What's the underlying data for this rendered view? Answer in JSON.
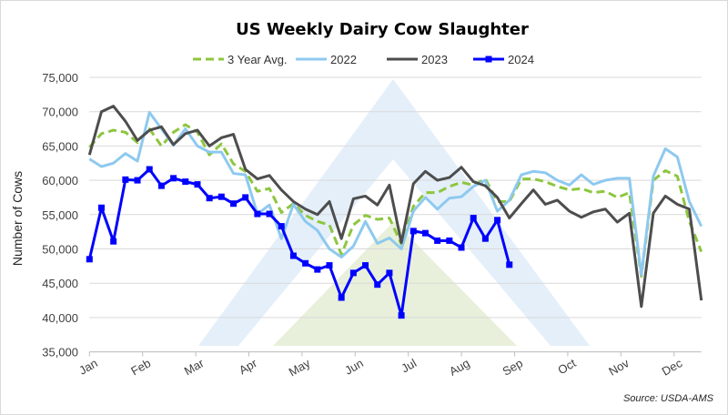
{
  "chart_data": {
    "type": "line",
    "title": "US Weekly Dairy Cow Slaughter",
    "xlabel": "",
    "ylabel": "Number of Cows",
    "ylim": [
      35000,
      75000
    ],
    "yticks": [
      35000,
      40000,
      45000,
      50000,
      55000,
      60000,
      65000,
      70000,
      75000
    ],
    "ytick_labels": [
      "35,000",
      "40,000",
      "45,000",
      "50,000",
      "55,000",
      "60,000",
      "65,000",
      "70,000",
      "75,000"
    ],
    "x_unit": "week of year",
    "xlim": [
      1,
      52
    ],
    "month_labels": [
      "Jan",
      "Feb",
      "Mar",
      "Apr",
      "May",
      "Jun",
      "Jul",
      "Aug",
      "Sep",
      "Oct",
      "Nov",
      "Dec"
    ],
    "grid": "horizontal",
    "legend_position": "top",
    "source": "Source: USDA-AMS",
    "series": [
      {
        "name": "3 Year Avg.",
        "color": "#8dc63f",
        "style": "dashed",
        "values": [
          64800,
          66800,
          67300,
          67000,
          65500,
          67500,
          65000,
          67000,
          68100,
          67000,
          63700,
          65300,
          62400,
          61300,
          58400,
          58800,
          55300,
          56600,
          54900,
          54000,
          53500,
          49200,
          53500,
          54900,
          54300,
          54500,
          50700,
          56200,
          58200,
          58200,
          59100,
          59700,
          59300,
          60200,
          56900,
          56900,
          60200,
          60200,
          59800,
          59100,
          58600,
          58800,
          58200,
          58400,
          57500,
          58200,
          46000,
          60000,
          61400,
          60600,
          54000,
          49600
        ]
      },
      {
        "name": "2022",
        "color": "#8ec9ef",
        "style": "solid",
        "values": [
          63100,
          62000,
          62500,
          63900,
          62800,
          69900,
          67500,
          65100,
          67500,
          65000,
          64100,
          64100,
          61000,
          60800,
          55100,
          56400,
          51500,
          56500,
          54000,
          52700,
          50000,
          48800,
          50400,
          54000,
          50800,
          51600,
          50000,
          55500,
          57500,
          55800,
          57400,
          57600,
          59100,
          60000,
          55500,
          57100,
          60800,
          61300,
          61100,
          60000,
          59300,
          60800,
          59400,
          60000,
          60300,
          60300,
          46200,
          60600,
          64600,
          63400,
          56900,
          53300
        ]
      },
      {
        "name": "2023",
        "color": "#4d4d4d",
        "style": "solid",
        "values": [
          63700,
          70000,
          70800,
          68600,
          65800,
          67300,
          67800,
          65200,
          66800,
          67300,
          65000,
          66200,
          66700,
          61600,
          60200,
          60700,
          58600,
          56900,
          55800,
          55000,
          56900,
          51500,
          57300,
          57700,
          56400,
          59300,
          50900,
          59500,
          61300,
          60000,
          60400,
          61900,
          59800,
          59200,
          57500,
          54500,
          56600,
          58600,
          56500,
          57100,
          55500,
          54600,
          55400,
          55800,
          53900,
          55200,
          41600,
          55200,
          57700,
          56500,
          55800,
          42500
        ]
      },
      {
        "name": "2024",
        "color": "#0000ff",
        "style": "solid-markers",
        "values": [
          48500,
          56000,
          51100,
          60100,
          60000,
          61600,
          59200,
          60300,
          59800,
          59400,
          57400,
          57600,
          56600,
          57500,
          55100,
          55100,
          53300,
          49000,
          47900,
          47000,
          47600,
          42900,
          46500,
          47600,
          44800,
          46500,
          40300,
          52600,
          52300,
          51200,
          51200,
          50200,
          54500,
          51500,
          54200,
          47700
        ]
      }
    ]
  }
}
